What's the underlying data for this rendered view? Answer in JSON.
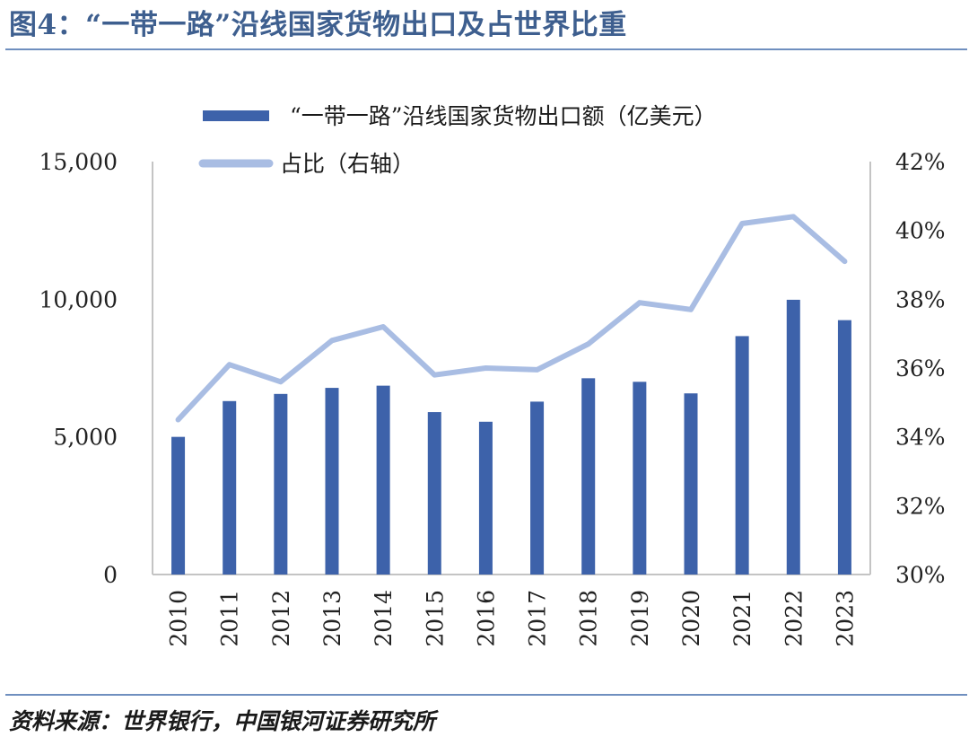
{
  "figure": {
    "title": "图4：“一带一路”沿线国家货物出口及占世界比重",
    "source": "资料来源：世界银行，中国银河证券研究所"
  },
  "colors": {
    "bar": "#3d62aa",
    "line": "#a9bde3",
    "axis": "#bfbfbf",
    "title": "#3e5f8f"
  },
  "chart_data": {
    "type": "bar",
    "title": "图4：“一带一路”沿线国家货物出口及占世界比重",
    "categories": [
      "2010",
      "2011",
      "2012",
      "2013",
      "2014",
      "2015",
      "2016",
      "2017",
      "2018",
      "2019",
      "2020",
      "2021",
      "2022",
      "2023"
    ],
    "series": [
      {
        "name": "“一带一路”沿线国家货物出口额（亿美元）",
        "type": "bar",
        "axis": "left",
        "values": [
          5000,
          6300,
          6560,
          6780,
          6860,
          5900,
          5550,
          6280,
          7130,
          7000,
          6580,
          8660,
          9980,
          9240
        ]
      },
      {
        "name": "占比（右轴）",
        "type": "line",
        "axis": "right",
        "values": [
          34.5,
          36.1,
          35.6,
          36.8,
          37.2,
          35.8,
          36.0,
          35.95,
          36.7,
          37.9,
          37.7,
          40.2,
          40.4,
          39.1
        ]
      }
    ],
    "y_left": {
      "range": [
        0,
        15000
      ],
      "ticks": [
        "0",
        "5,000",
        "10,000",
        "15,000"
      ],
      "tick_values": [
        0,
        5000,
        10000,
        15000
      ]
    },
    "y_right": {
      "range": [
        30,
        42
      ],
      "ticks": [
        "30%",
        "32%",
        "34%",
        "36%",
        "38%",
        "40%",
        "42%"
      ],
      "tick_values": [
        30,
        32,
        34,
        36,
        38,
        40,
        42
      ]
    },
    "grid": false,
    "legend_position": "top"
  }
}
